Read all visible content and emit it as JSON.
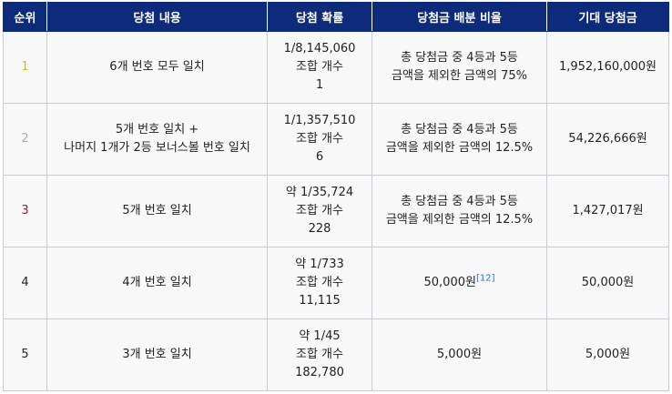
{
  "table": {
    "headers": [
      "순위",
      "당첨 내용",
      "당첨 확률",
      "당첨금 배분 비율",
      "기대 당첨금"
    ],
    "rows": [
      {
        "rank": "1",
        "content": [
          "6개 번호 모두 일치"
        ],
        "probability": [
          "1/8,145,060",
          "조합 개수",
          "1"
        ],
        "ratio": [
          "총 당첨금 중 4등과 5등",
          "금액을 제외한 금액의 75%"
        ],
        "ratio_ref": "",
        "expected": "1,952,160,000원"
      },
      {
        "rank": "2",
        "content": [
          "5개 번호 일치 +",
          "나머지 1개가 2등 보너스볼 번호 일치"
        ],
        "probability": [
          "1/1,357,510",
          "조합 개수",
          "6"
        ],
        "ratio": [
          "총 당첨금 중 4등과 5등",
          "금액을 제외한 금액의 12.5%"
        ],
        "ratio_ref": "",
        "expected": "54,226,666원"
      },
      {
        "rank": "3",
        "content": [
          "5개 번호 일치"
        ],
        "probability": [
          "약 1/35,724",
          "조합 개수",
          "228"
        ],
        "ratio": [
          "총 당첨금 중 4등과 5등",
          "금액을 제외한 금액의 12.5%"
        ],
        "ratio_ref": "",
        "expected": "1,427,017원"
      },
      {
        "rank": "4",
        "content": [
          "4개 번호 일치"
        ],
        "probability": [
          "약 1/733",
          "조합 개수",
          "11,115"
        ],
        "ratio": [
          "50,000원"
        ],
        "ratio_ref": "[12]",
        "expected": "50,000원"
      },
      {
        "rank": "5",
        "content": [
          "3개 번호 일치"
        ],
        "probability": [
          "약 1/45",
          "조합 개수",
          "182,780"
        ],
        "ratio": [
          "5,000원"
        ],
        "ratio_ref": "",
        "expected": "5,000원"
      }
    ]
  },
  "colors": {
    "header_bg": "#0d2b7a",
    "rank_1": "#e6b800",
    "rank_2": "#a8acb0",
    "rank_3": "#b01818",
    "reference_link": "#2b6cd0"
  }
}
